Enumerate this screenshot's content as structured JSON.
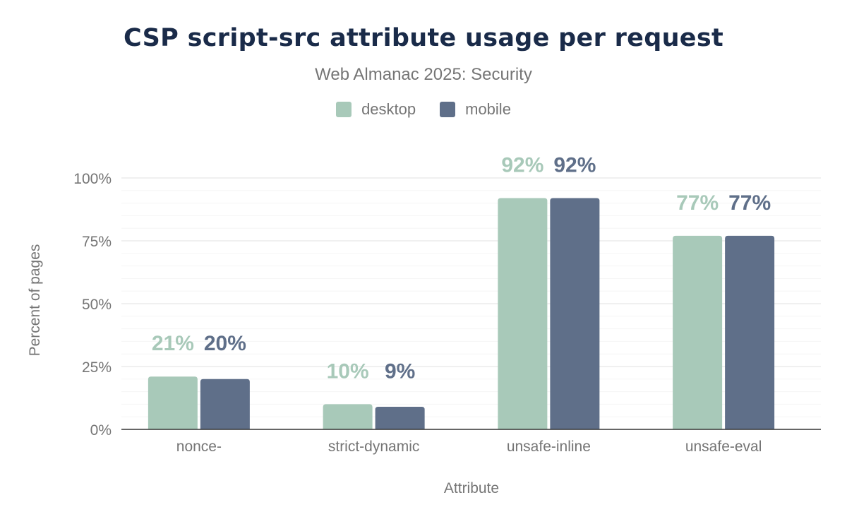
{
  "chart_data": {
    "type": "bar",
    "title": "CSP script-src attribute usage per request",
    "subtitle": "Web Almanac 2025: Security",
    "xlabel": "Attribute",
    "ylabel": "Percent of pages",
    "categories": [
      "nonce-",
      "strict-dynamic",
      "unsafe-inline",
      "unsafe-eval"
    ],
    "series": [
      {
        "name": "desktop",
        "color": "#a8c9b9",
        "values": [
          21,
          10,
          92,
          77
        ],
        "labels": [
          "21%",
          "10%",
          "92%",
          "77%"
        ]
      },
      {
        "name": "mobile",
        "color": "#5f6f89",
        "values": [
          20,
          9,
          92,
          77
        ],
        "labels": [
          "20%",
          "9%",
          "92%",
          "77%"
        ]
      }
    ],
    "ylim": [
      0,
      100
    ],
    "yticks": [
      0,
      25,
      50,
      75,
      100
    ],
    "ytick_labels": [
      "0%",
      "25%",
      "50%",
      "75%",
      "100%"
    ],
    "grid": true,
    "legend_position": "top"
  }
}
